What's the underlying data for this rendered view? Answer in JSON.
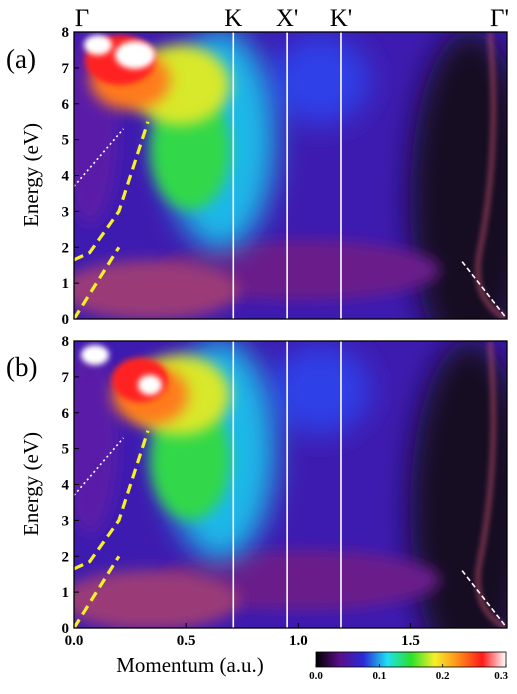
{
  "chart_data": {
    "type": "heatmap",
    "xlabel": "Momentum (a.u.)",
    "xlim": [
      0.0,
      1.93
    ],
    "x_ticks": [
      0.0,
      0.5,
      1.0,
      1.5
    ],
    "x_tick_labels": [
      "0.0",
      "0.5",
      "1.0",
      "1.5"
    ],
    "high_symmetry_points": [
      {
        "label": "Γ",
        "x": 0.0
      },
      {
        "label": "K",
        "x": 0.71
      },
      {
        "label": "X'",
        "x": 0.95
      },
      {
        "label": "K'",
        "x": 1.19
      },
      {
        "label": "Γ'",
        "x": 1.93
      }
    ],
    "colorbar": {
      "range": [
        0.0,
        0.3
      ],
      "ticks": [
        0.0,
        0.1,
        0.2,
        0.3
      ],
      "tick_labels": [
        "0.0",
        "0.1",
        "0.2",
        "0.3"
      ],
      "colors": [
        "#000000",
        "#5a0e8a",
        "#2a2ad8",
        "#1ee0f0",
        "#2be02b",
        "#f5f02a",
        "#ff8c1a",
        "#ff1a1a",
        "#ffffff"
      ]
    },
    "panels": [
      {
        "label": "(a)",
        "ylabel": "Energy (eV)",
        "ylim": [
          0,
          8
        ],
        "y_ticks": [
          0,
          1,
          2,
          3,
          4,
          5,
          6,
          7,
          8
        ],
        "y_tick_labels": [
          "0",
          "1",
          "2",
          "3",
          "4",
          "5",
          "6",
          "7",
          "8"
        ],
        "guide_lines": [
          {
            "style": "yellow-dashed",
            "points": [
              [
                0.0,
                1.65
              ],
              [
                0.07,
                1.85
              ],
              [
                0.2,
                3.0
              ],
              [
                0.33,
                5.5
              ]
            ]
          },
          {
            "style": "yellow-dashed",
            "points": [
              [
                0.0,
                0.0
              ],
              [
                0.2,
                2.0
              ]
            ]
          },
          {
            "style": "white-dotted",
            "points": [
              [
                0.0,
                3.7
              ],
              [
                0.22,
                5.3
              ]
            ]
          },
          {
            "style": "white-dashed",
            "points": [
              [
                1.73,
                1.6
              ],
              [
                1.93,
                0.0
              ]
            ]
          }
        ]
      },
      {
        "label": "(b)",
        "ylabel": "Energy (eV)",
        "ylim": [
          0,
          8
        ],
        "y_ticks": [
          0,
          1,
          2,
          3,
          4,
          5,
          6,
          7,
          8
        ],
        "y_tick_labels": [
          "0",
          "1",
          "2",
          "3",
          "4",
          "5",
          "6",
          "7",
          "8"
        ],
        "guide_lines": [
          {
            "style": "yellow-dashed",
            "points": [
              [
                0.0,
                1.65
              ],
              [
                0.07,
                1.85
              ],
              [
                0.2,
                3.0
              ],
              [
                0.33,
                5.5
              ]
            ]
          },
          {
            "style": "yellow-dashed",
            "points": [
              [
                0.0,
                0.0
              ],
              [
                0.2,
                2.0
              ]
            ]
          },
          {
            "style": "white-dotted",
            "points": [
              [
                0.0,
                3.7
              ],
              [
                0.22,
                5.3
              ]
            ]
          },
          {
            "style": "white-dashed",
            "points": [
              [
                1.73,
                1.6
              ],
              [
                1.93,
                0.0
              ]
            ]
          }
        ]
      }
    ]
  }
}
